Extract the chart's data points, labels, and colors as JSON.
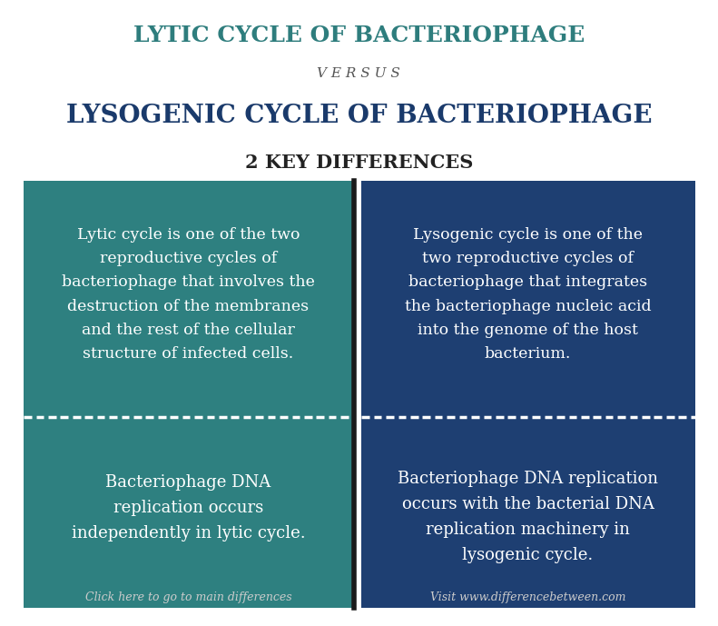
{
  "bg_color": "#ffffff",
  "title1": "LYTIC CYCLE OF BACTERIOPHAGE",
  "title1_color": "#2e7d7d",
  "versus": "V E R S U S",
  "versus_color": "#555555",
  "title2": "LYSOGENIC CYCLE OF BACTERIOPHAGE",
  "title2_color": "#1a3a6b",
  "key_diff": "2 KEY DIFFERENCES",
  "key_diff_color": "#222222",
  "left_bg": "#2e8080",
  "right_bg": "#1e3f72",
  "left_text1": "Lytic cycle is one of the two\nreproductive cycles of\nbacteriophage that involves the\ndestruction of the membranes\nand the rest of the cellular\nstructure of infected cells.",
  "left_text2": "Bacteriophage DNA\nreplication occurs\nindependently in lytic cycle.",
  "right_text1": "Lysogenic cycle is one of the\ntwo reproductive cycles of\nbacteriophage that integrates\nthe bacteriophage nucleic acid\ninto the genome of the host\nbacterium.",
  "right_text2": "Bacteriophage DNA replication\noccurs with the bacterial DNA\nreplication machinery in\nlysogenic cycle.",
  "cell_text_color": "#ffffff",
  "left_footer": "Click here to go to main differences",
  "right_footer": "Visit www.differencebetween.com",
  "footer_color": "#cccccc",
  "divider_color": "#ffffff"
}
